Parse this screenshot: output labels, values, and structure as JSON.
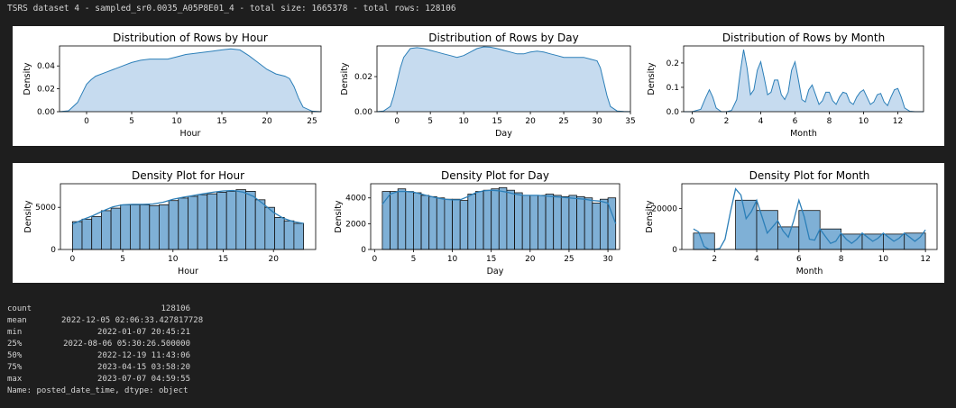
{
  "header": {
    "text": "TSRS dataset 4 - sampled_sr0.0035_A05P8E01_4 - total size: 1665378 - total rows: 128106"
  },
  "stats": {
    "rows": [
      {
        "key": "count",
        "value": "128106"
      },
      {
        "key": "mean",
        "value": "2022-12-05 02:06:33.427817728"
      },
      {
        "key": "min",
        "value": "2022-01-07 20:45:21"
      },
      {
        "key": "25%",
        "value": "2022-08-06 05:30:26.500000"
      },
      {
        "key": "50%",
        "value": "2022-12-19 11:43:06"
      },
      {
        "key": "75%",
        "value": "2023-04-15 03:58:20"
      },
      {
        "key": "max",
        "value": "2023-07-07 04:59:55"
      }
    ],
    "footer": "Name: posted_date_time, dtype: object"
  },
  "colors": {
    "kde_fill": "#c6dbef",
    "line": "#2c7fb8",
    "bar_fill": "#7fb0d6",
    "bar_edge": "#111111",
    "background": "#1e1e1e"
  },
  "chart_data": [
    {
      "type": "area",
      "title": "Distribution of Rows by Hour",
      "xlabel": "Hour",
      "ylabel": "Density",
      "xlim": [
        -3,
        26
      ],
      "ylim": [
        0,
        0.0575
      ],
      "xticks": [
        0,
        5,
        10,
        15,
        20,
        25
      ],
      "yticks": [
        0,
        0.02,
        0.04
      ],
      "ytick_labels": [
        "0.00",
        "0.02",
        "0.04"
      ],
      "x": [
        -3,
        -2,
        -1,
        -0.5,
        0,
        0.5,
        1,
        2,
        3,
        4,
        5,
        6,
        7,
        8,
        9,
        10,
        11,
        12,
        13,
        14,
        15,
        16,
        17,
        18,
        19,
        20,
        21,
        22,
        22.5,
        23,
        23.5,
        24,
        25,
        26
      ],
      "y": [
        0.0,
        0.0008,
        0.008,
        0.016,
        0.024,
        0.028,
        0.031,
        0.034,
        0.037,
        0.04,
        0.043,
        0.045,
        0.046,
        0.046,
        0.046,
        0.048,
        0.05,
        0.051,
        0.052,
        0.053,
        0.054,
        0.055,
        0.054,
        0.049,
        0.043,
        0.037,
        0.033,
        0.031,
        0.029,
        0.022,
        0.012,
        0.004,
        0.0005,
        0.0
      ]
    },
    {
      "type": "area",
      "title": "Distribution of Rows by Day",
      "xlabel": "Day",
      "ylabel": "Density",
      "xlim": [
        -3,
        35
      ],
      "ylim": [
        0,
        0.0375
      ],
      "xticks": [
        0,
        5,
        10,
        15,
        20,
        25,
        30,
        35
      ],
      "yticks": [
        0,
        0.02
      ],
      "ytick_labels": [
        "0.00",
        "0.02"
      ],
      "x": [
        -3,
        -2,
        -1,
        -0.5,
        0,
        0.5,
        1,
        2,
        3,
        4,
        5,
        6,
        7,
        8,
        9,
        10,
        11,
        12,
        13,
        14,
        15,
        16,
        17,
        18,
        19,
        20,
        21,
        22,
        23,
        24,
        25,
        26,
        27,
        28,
        29,
        30,
        30.5,
        31,
        31.5,
        32,
        33,
        34,
        35
      ],
      "y": [
        0.0,
        0.0004,
        0.003,
        0.009,
        0.017,
        0.025,
        0.031,
        0.036,
        0.0365,
        0.036,
        0.035,
        0.034,
        0.033,
        0.032,
        0.031,
        0.032,
        0.034,
        0.036,
        0.037,
        0.0368,
        0.036,
        0.035,
        0.034,
        0.033,
        0.033,
        0.034,
        0.0345,
        0.034,
        0.033,
        0.032,
        0.031,
        0.031,
        0.031,
        0.031,
        0.03,
        0.029,
        0.025,
        0.017,
        0.009,
        0.003,
        0.0004,
        0.0001,
        0.0
      ]
    },
    {
      "type": "area",
      "title": "Distribution of Rows by Month",
      "xlabel": "Month",
      "ylabel": "Density",
      "xlim": [
        -0.5,
        13.5
      ],
      "ylim": [
        0,
        0.27
      ],
      "xticks": [
        0,
        2,
        4,
        6,
        8,
        10,
        12
      ],
      "yticks": [
        0,
        0.1,
        0.2
      ],
      "ytick_labels": [
        "0.0",
        "0.1",
        "0.2"
      ],
      "x": [
        -0.5,
        0,
        0.5,
        0.8,
        1,
        1.2,
        1.4,
        1.7,
        2,
        2.3,
        2.6,
        2.8,
        3,
        3.2,
        3.4,
        3.6,
        3.8,
        4,
        4.2,
        4.4,
        4.6,
        4.8,
        5,
        5.2,
        5.4,
        5.6,
        5.8,
        6,
        6.2,
        6.4,
        6.6,
        6.8,
        7,
        7.2,
        7.4,
        7.6,
        7.8,
        8,
        8.2,
        8.4,
        8.6,
        8.8,
        9,
        9.2,
        9.4,
        9.6,
        9.8,
        10,
        10.2,
        10.4,
        10.6,
        10.8,
        11,
        11.2,
        11.4,
        11.6,
        11.8,
        12,
        12.2,
        12.4,
        12.7,
        13,
        13.5
      ],
      "y": [
        0.0,
        0.0,
        0.01,
        0.06,
        0.09,
        0.06,
        0.015,
        0.0,
        0.0,
        0.005,
        0.05,
        0.16,
        0.255,
        0.18,
        0.07,
        0.09,
        0.17,
        0.205,
        0.14,
        0.07,
        0.08,
        0.13,
        0.13,
        0.07,
        0.05,
        0.08,
        0.17,
        0.205,
        0.13,
        0.05,
        0.04,
        0.09,
        0.11,
        0.07,
        0.03,
        0.045,
        0.08,
        0.08,
        0.045,
        0.03,
        0.06,
        0.08,
        0.075,
        0.04,
        0.03,
        0.06,
        0.08,
        0.09,
        0.06,
        0.03,
        0.04,
        0.07,
        0.075,
        0.04,
        0.025,
        0.06,
        0.09,
        0.095,
        0.06,
        0.015,
        0.002,
        0.0,
        0.0
      ]
    },
    {
      "type": "bar",
      "title": "Density Plot for Hour",
      "xlabel": "Hour",
      "ylabel": "Density",
      "xlim": [
        -1.2,
        24.2
      ],
      "ylim": [
        0,
        7800
      ],
      "xticks": [
        0,
        5,
        10,
        15,
        20
      ],
      "yticks": [
        0,
        5000
      ],
      "ytick_labels": [
        "0",
        "5000"
      ],
      "bin_start": 0,
      "bin_width": 0.958,
      "values": [
        3300,
        3600,
        3900,
        4600,
        4900,
        5300,
        5300,
        5300,
        5200,
        5300,
        5800,
        6100,
        6300,
        6500,
        6600,
        6800,
        6900,
        7100,
        6900,
        5900,
        5000,
        3800,
        3400,
        3100
      ],
      "kde_x": [
        0,
        1,
        2,
        3,
        4,
        5,
        6,
        7,
        8,
        9,
        10,
        11,
        12,
        13,
        14,
        15,
        16,
        17,
        18,
        19,
        20,
        21,
        22,
        23
      ],
      "kde_y": [
        3000,
        3550,
        4000,
        4550,
        5050,
        5300,
        5350,
        5350,
        5400,
        5600,
        5950,
        6200,
        6400,
        6600,
        6800,
        6950,
        7000,
        6800,
        6300,
        5400,
        4400,
        3700,
        3300,
        3100
      ]
    },
    {
      "type": "bar",
      "title": "Density Plot for Day",
      "xlabel": "Day",
      "ylabel": "Density",
      "xlim": [
        -0.5,
        31.5
      ],
      "ylim": [
        0,
        5100
      ],
      "xticks": [
        0,
        5,
        10,
        15,
        20,
        25,
        30
      ],
      "yticks": [
        0,
        2000,
        4000
      ],
      "ytick_labels": [
        "0",
        "2000",
        "4000"
      ],
      "bin_start": 1,
      "bin_width": 1.0,
      "values": [
        4500,
        4500,
        4700,
        4500,
        4400,
        4200,
        4100,
        4000,
        3900,
        3900,
        3800,
        4300,
        4500,
        4600,
        4700,
        4800,
        4600,
        4400,
        4200,
        4200,
        4200,
        4300,
        4200,
        4100,
        4200,
        4100,
        4000,
        3600,
        3900,
        4000
      ],
      "kde_x": [
        1,
        2,
        3,
        4,
        5,
        6,
        7,
        8,
        9,
        10,
        11,
        12,
        13,
        14,
        15,
        16,
        17,
        18,
        19,
        20,
        21,
        22,
        23,
        24,
        25,
        26,
        27,
        28,
        29,
        30,
        31
      ],
      "kde_y": [
        3500,
        4300,
        4500,
        4500,
        4450,
        4300,
        4150,
        4000,
        3900,
        3850,
        3850,
        4100,
        4400,
        4550,
        4600,
        4550,
        4450,
        4300,
        4200,
        4200,
        4200,
        4150,
        4100,
        4050,
        4000,
        3950,
        3900,
        3800,
        3750,
        3600,
        2000
      ]
    },
    {
      "type": "bar",
      "title": "Density Plot for Month",
      "xlabel": "Month",
      "ylabel": "Density",
      "xlim": [
        0.45,
        12.55
      ],
      "ylim": [
        0,
        32000
      ],
      "xticks": [
        2,
        4,
        6,
        8,
        10,
        12
      ],
      "yticks": [
        0,
        20000
      ],
      "ytick_labels": [
        "0",
        "20000"
      ],
      "bin_start": 1,
      "bin_width": 1.0,
      "values": [
        8000,
        0,
        24000,
        19000,
        11000,
        19000,
        10000,
        7500,
        7500,
        7500,
        8000
      ],
      "kde_x": [
        1,
        1.25,
        1.5,
        1.75,
        2,
        2.25,
        2.5,
        2.75,
        3,
        3.25,
        3.5,
        3.75,
        4,
        4.25,
        4.5,
        4.75,
        5,
        5.25,
        5.5,
        5.75,
        6,
        6.25,
        6.5,
        6.75,
        7,
        7.25,
        7.5,
        7.75,
        8,
        8.25,
        8.5,
        8.75,
        9,
        9.25,
        9.5,
        9.75,
        10,
        10.25,
        10.5,
        10.75,
        11,
        11.25,
        11.5,
        11.75,
        12
      ],
      "kde_y": [
        10000,
        8500,
        1500,
        0,
        0,
        500,
        5000,
        18000,
        29500,
        26500,
        15000,
        18500,
        24000,
        16000,
        8000,
        11000,
        14000,
        9000,
        6000,
        14000,
        24000,
        16000,
        5000,
        4500,
        10000,
        6500,
        3000,
        4000,
        8000,
        5000,
        3000,
        5000,
        8000,
        6000,
        4000,
        5500,
        8000,
        6000,
        4000,
        5500,
        8000,
        6000,
        4000,
        6000,
        9500
      ]
    }
  ]
}
